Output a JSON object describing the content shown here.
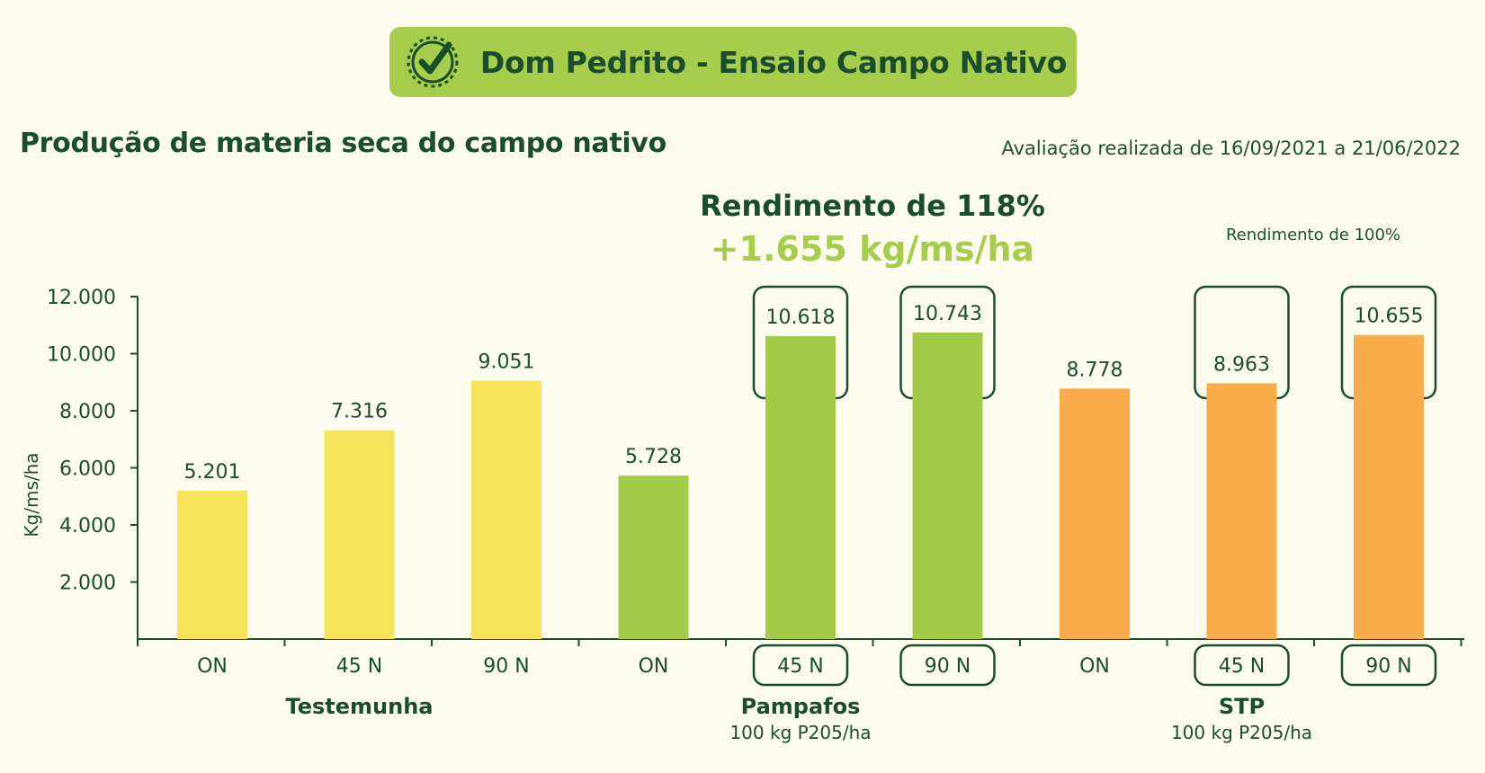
{
  "header": {
    "banner_title": "Dom Pedrito - Ensaio Campo Nativo",
    "subtitle": "Produção de materia seca do campo nativo",
    "period": "Avaliação realizada de 16/09/2021 a 21/06/2022",
    "rendimento_main": "Rendimento de 118%",
    "rendimento_gain": "+1.655 kg/ms/ha",
    "rendimento_100": "Rendimento de 100%"
  },
  "colors": {
    "background": "#fdfcef",
    "dark_green": "#1a4d2e",
    "banner_green": "#a6cd4b",
    "testemunha": "#f7e45a",
    "pampafos": "#a2cb48",
    "stp": "#f8ad4a"
  },
  "icons": {
    "banner": "check-badge-icon"
  },
  "chart_data": {
    "type": "bar",
    "ylabel": "Kg/ms/ha",
    "xlabel": "",
    "ylim": [
      0,
      12000
    ],
    "yticks": [
      "2.000",
      "4.000",
      "6.000",
      "8.000",
      "10.000",
      "12.000"
    ],
    "ytick_values": [
      2000,
      4000,
      6000,
      8000,
      10000,
      12000
    ],
    "grid": false,
    "groups": [
      {
        "name": "Testemunha",
        "sublabel": "",
        "color": "#f7e45a"
      },
      {
        "name": "Pampafos",
        "sublabel": "100 kg P205/ha",
        "color": "#a2cb48"
      },
      {
        "name": "STP",
        "sublabel": "100 kg P205/ha",
        "color": "#f8ad4a"
      }
    ],
    "bars": [
      {
        "category": "ON",
        "group": 0,
        "value": 5201,
        "label": "5.201",
        "highlight": false
      },
      {
        "category": "45 N",
        "group": 0,
        "value": 7316,
        "label": "7.316",
        "highlight": false
      },
      {
        "category": "90 N",
        "group": 0,
        "value": 9051,
        "label": "9.051",
        "highlight": false
      },
      {
        "category": "ON",
        "group": 1,
        "value": 5728,
        "label": "5.728",
        "highlight": false
      },
      {
        "category": "45 N",
        "group": 1,
        "value": 10618,
        "label": "10.618",
        "highlight": true
      },
      {
        "category": "90 N",
        "group": 1,
        "value": 10743,
        "label": "10.743",
        "highlight": true
      },
      {
        "category": "ON",
        "group": 2,
        "value": 8778,
        "label": "8.778",
        "highlight": false
      },
      {
        "category": "45 N",
        "group": 2,
        "value": 8963,
        "label": "8.963",
        "highlight": true
      },
      {
        "category": "90 N",
        "group": 2,
        "value": 10655,
        "label": "10.655",
        "highlight": true
      }
    ]
  }
}
